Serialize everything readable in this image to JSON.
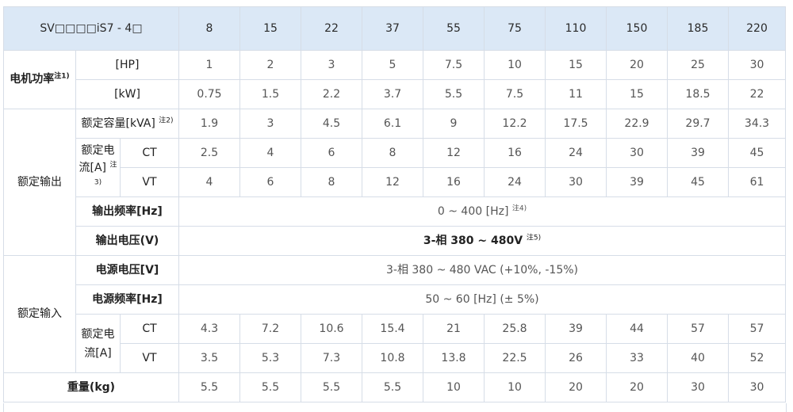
{
  "header": {
    "model_label": "SV□□□□iS7 - 4□",
    "capacities": [
      "8",
      "15",
      "22",
      "37",
      "55",
      "75",
      "110",
      "150",
      "185",
      "220"
    ]
  },
  "motor_power": {
    "label": "电机功率",
    "note": "注1)",
    "hp_unit": "[HP]",
    "hp_values": [
      "1",
      "2",
      "3",
      "5",
      "7.5",
      "10",
      "15",
      "20",
      "25",
      "30"
    ],
    "kw_unit": "[kW]",
    "kw_values": [
      "0.75",
      "1.5",
      "2.2",
      "3.7",
      "5.5",
      "7.5",
      "11",
      "15",
      "18.5",
      "22"
    ]
  },
  "rated_output": {
    "label": "额定输出",
    "capacity_label": "额定容量[kVA]",
    "capacity_note": "注2)",
    "capacity_values": [
      "1.9",
      "3",
      "4.5",
      "6.1",
      "9",
      "12.2",
      "17.5",
      "22.9",
      "29.7",
      "34.3"
    ],
    "current_label_line1": "额定电",
    "current_label_line2": "流[A]",
    "current_note": "注",
    "current_note2": "3)",
    "ct_label": "CT",
    "ct_values": [
      "2.5",
      "4",
      "6",
      "8",
      "12",
      "16",
      "24",
      "30",
      "39",
      "45"
    ],
    "vt_label": "VT",
    "vt_values": [
      "4",
      "6",
      "8",
      "12",
      "16",
      "24",
      "30",
      "39",
      "45",
      "61"
    ],
    "freq_label": "输出频率[Hz]",
    "freq_value": "0 ~ 400 [Hz]",
    "freq_note": "注4)",
    "voltage_label": "输出电压(V)",
    "voltage_value": "3-相 380 ~ 480V",
    "voltage_note": "注5)"
  },
  "rated_input": {
    "label": "额定输入",
    "voltage_label": "电源电压[V]",
    "voltage_value": "3-相 380 ~ 480 VAC (+10%, -15%)",
    "freq_label": "电源频率[Hz]",
    "freq_value": "50 ~ 60 [Hz] (± 5%)",
    "current_label_line1": "额定电",
    "current_label_line2": "流[A]",
    "ct_label": "CT",
    "ct_values": [
      "4.3",
      "7.2",
      "10.6",
      "15.4",
      "21",
      "25.8",
      "39",
      "44",
      "57",
      "57"
    ],
    "vt_label": "VT",
    "vt_values": [
      "3.5",
      "5.3",
      "7.3",
      "10.8",
      "13.8",
      "22.5",
      "26",
      "33",
      "40",
      "52"
    ]
  },
  "weight": {
    "label": "重量(kg)",
    "values": [
      "5.5",
      "5.5",
      "5.5",
      "5.5",
      "10",
      "10",
      "20",
      "20",
      "30",
      "30"
    ]
  }
}
